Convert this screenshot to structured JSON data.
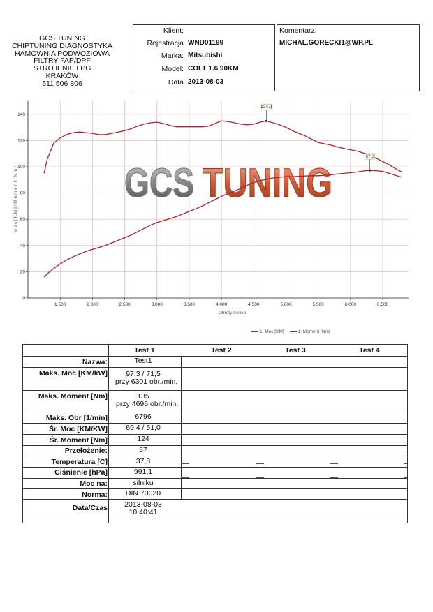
{
  "company": {
    "lines": [
      "GCS TUNING",
      "CHIPTUNING DIAGNOSTYKA",
      "HAMOWNIA PODWOZIOWA",
      "FILTRY FAP/DPF",
      "STROJENIE LPG",
      "KRAKÓW",
      "511 506 806"
    ]
  },
  "client": {
    "title": "Klient:",
    "fields": [
      {
        "label": "Rejestracja",
        "value": "WND01199"
      },
      {
        "label": "Marka:",
        "value": "Mitsubishi"
      },
      {
        "label": "Model:",
        "value": "COLT 1.6 90KM"
      },
      {
        "label": "Data",
        "value": "2013-08-03"
      }
    ]
  },
  "comment": {
    "title": "Komentarz:",
    "value": "MICHAL.GORECKI1@WP.PL"
  },
  "watermark": "GCS TUNING",
  "chart_data": {
    "type": "line",
    "xlabel": "Obroty silnika",
    "ylabel": "M o c [ K M ] / M o m e n t [ N m ]",
    "xlim": [
      1000,
      6900
    ],
    "ylim": [
      0,
      150
    ],
    "x_ticks": [
      1500,
      2000,
      2500,
      3000,
      3500,
      4000,
      4500,
      5000,
      5500,
      6000,
      6500
    ],
    "x_tick_labels": [
      "1.500",
      "2.000",
      "2.500",
      "3.000",
      "3.500",
      "4.000",
      "4.500",
      "5.000",
      "5.500",
      "6.000",
      "6.500"
    ],
    "y_ticks": [
      0,
      20,
      40,
      60,
      80,
      100,
      120,
      140
    ],
    "grid": true,
    "legend_position": "bottom-right",
    "color": "#b22222",
    "series": [
      {
        "name": "1: Moc [KM]",
        "x": [
          1250,
          1300,
          1400,
          1500,
          1600,
          1700,
          1800,
          1900,
          2000,
          2100,
          2200,
          2300,
          2400,
          2500,
          2600,
          2700,
          2800,
          2900,
          3000,
          3100,
          3200,
          3300,
          3400,
          3500,
          3600,
          3700,
          3800,
          3900,
          4000,
          4100,
          4200,
          4300,
          4400,
          4500,
          4600,
          4700,
          4800,
          4900,
          5000,
          5100,
          5200,
          5300,
          5400,
          5500,
          5600,
          5700,
          5800,
          5900,
          6000,
          6100,
          6200,
          6301,
          6400,
          6500,
          6600,
          6700,
          6796
        ],
        "y": [
          16,
          18.5,
          22.5,
          26,
          29,
          31.5,
          33.5,
          35.5,
          37,
          38.5,
          40,
          42,
          44,
          46,
          48,
          50.5,
          53,
          55.5,
          57.5,
          59,
          60.5,
          62,
          64,
          66,
          68,
          70,
          72.5,
          75,
          77.5,
          79.5,
          81.5,
          83.5,
          86,
          88,
          89.5,
          90.5,
          91.5,
          92,
          92.5,
          92.5,
          92.8,
          93,
          93.2,
          93.2,
          93.5,
          94,
          94.5,
          95,
          95.5,
          96,
          96.8,
          97.3,
          97,
          96.5,
          95,
          93.5,
          92
        ]
      },
      {
        "name": "1: Moment [Nm]",
        "x": [
          1250,
          1300,
          1400,
          1500,
          1600,
          1700,
          1800,
          1900,
          2000,
          2100,
          2200,
          2300,
          2400,
          2500,
          2600,
          2700,
          2800,
          2900,
          3000,
          3100,
          3200,
          3300,
          3400,
          3500,
          3600,
          3700,
          3800,
          3900,
          4000,
          4100,
          4200,
          4300,
          4400,
          4500,
          4600,
          4696,
          4800,
          4900,
          5000,
          5100,
          5200,
          5300,
          5400,
          5500,
          5600,
          5700,
          5800,
          5900,
          6000,
          6100,
          6200,
          6300,
          6400,
          6500,
          6600,
          6700,
          6796
        ],
        "y": [
          95,
          106,
          118,
          122,
          124.5,
          126,
          126.5,
          126,
          125.5,
          124.5,
          124.5,
          125.5,
          126.5,
          127.5,
          129,
          131,
          132.5,
          133.5,
          134,
          133,
          131.5,
          130.5,
          130.5,
          130.5,
          130.5,
          130.5,
          131,
          133,
          135,
          134.5,
          133.5,
          132.5,
          132,
          132.5,
          134,
          135,
          133.5,
          132,
          130,
          127.5,
          125.5,
          123.5,
          121,
          118.5,
          117.5,
          116.5,
          115,
          114,
          113,
          112,
          110.5,
          109,
          106.5,
          104,
          101.5,
          98.5,
          96
        ]
      }
    ],
    "annotations": [
      {
        "text": "134,9",
        "x": 4696,
        "y": 135,
        "series": 1
      },
      {
        "text": "97,3",
        "x": 6301,
        "y": 97.3,
        "series": 0
      }
    ]
  },
  "legend": [
    "1: Moc [KM]",
    "1: Moment [Nm]"
  ],
  "table": {
    "headers": [
      "Test 1",
      "Test 2",
      "Test 3",
      "Test 4"
    ],
    "rows": [
      {
        "label": "Nazwa:",
        "values": [
          "Test1"
        ]
      },
      {
        "label": "Maks. Moc [KM/kW]",
        "values": [
          "97,3 / 71,5",
          "przy 6301 obr./min."
        ]
      },
      {
        "label": "Maks. Moment [Nm]",
        "values": [
          "135",
          "przy 4696 obr./min."
        ]
      },
      {
        "label": "Maks. Obr [1/min]",
        "values": [
          "6796"
        ]
      },
      {
        "label": "Śr. Moc [KM/KW]",
        "values": [
          "69,4 / 51,0"
        ]
      },
      {
        "label": "Śr. Moment [Nm]",
        "values": [
          "124"
        ]
      },
      {
        "label": "Przełożenie:",
        "values": [
          "57"
        ]
      },
      {
        "label": "Temperatura [C]",
        "values": [
          "37,8"
        ]
      },
      {
        "label": "Ciśnienie [hPa]",
        "values": [
          "991,1"
        ]
      },
      {
        "label": "Moc na:",
        "values": [
          "silniku"
        ]
      },
      {
        "label": "Norma:",
        "values": [
          "DIN 70020"
        ]
      },
      {
        "label": "Data/Czas",
        "values": [
          "2013-08-03",
          "10:40:41"
        ]
      }
    ]
  }
}
